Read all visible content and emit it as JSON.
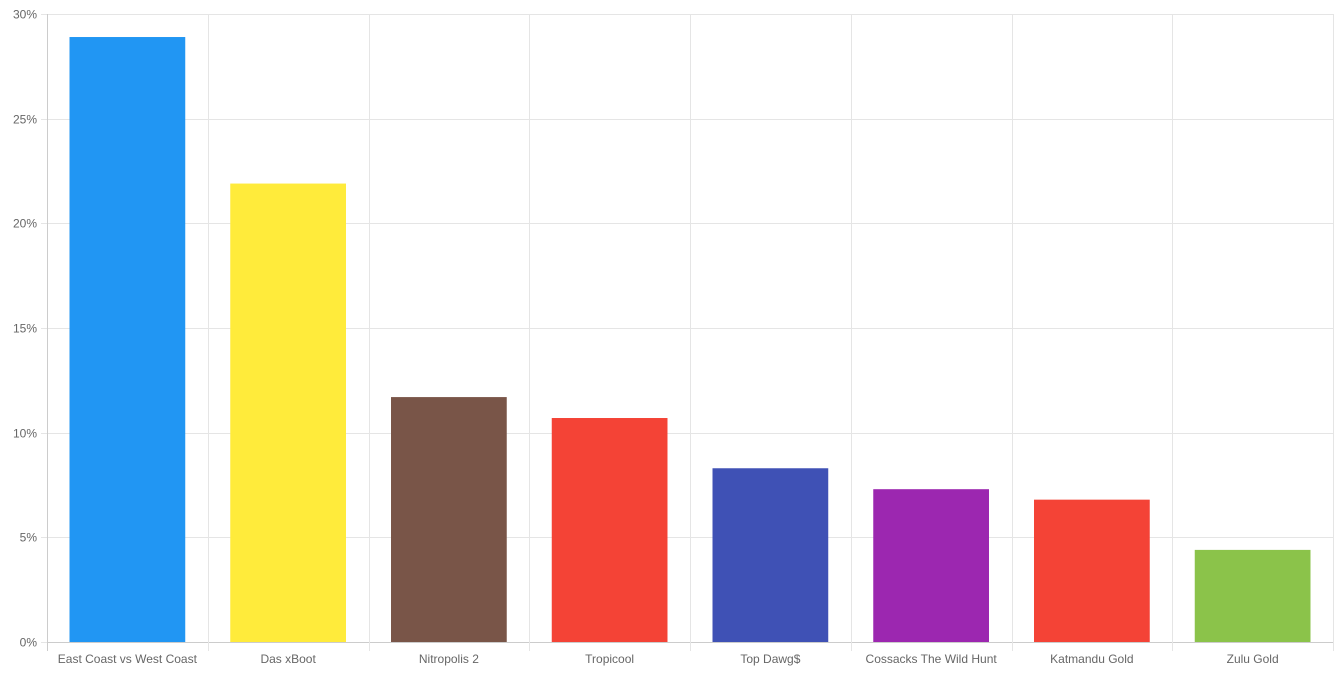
{
  "chart_data": {
    "type": "bar",
    "categories": [
      "East Coast vs West Coast",
      "Das xBoot",
      "Nitropolis 2",
      "Tropicool",
      "Top Dawg$",
      "Cossacks The Wild Hunt",
      "Katmandu Gold",
      "Zulu Gold"
    ],
    "values": [
      28.9,
      21.9,
      11.7,
      10.7,
      8.3,
      7.3,
      6.8,
      4.4
    ],
    "colors": [
      "#2196F3",
      "#FFEB3B",
      "#795548",
      "#F44336",
      "#3F51B5",
      "#9C27B0",
      "#F44336",
      "#8BC34A"
    ],
    "ylim": [
      0,
      30
    ],
    "yticks": [
      0,
      5,
      10,
      15,
      20,
      25,
      30
    ],
    "ytick_labels": [
      "0%",
      "5%",
      "10%",
      "15%",
      "20%",
      "25%",
      "30%"
    ],
    "grid": true,
    "title": "",
    "xlabel": "",
    "ylabel": ""
  }
}
